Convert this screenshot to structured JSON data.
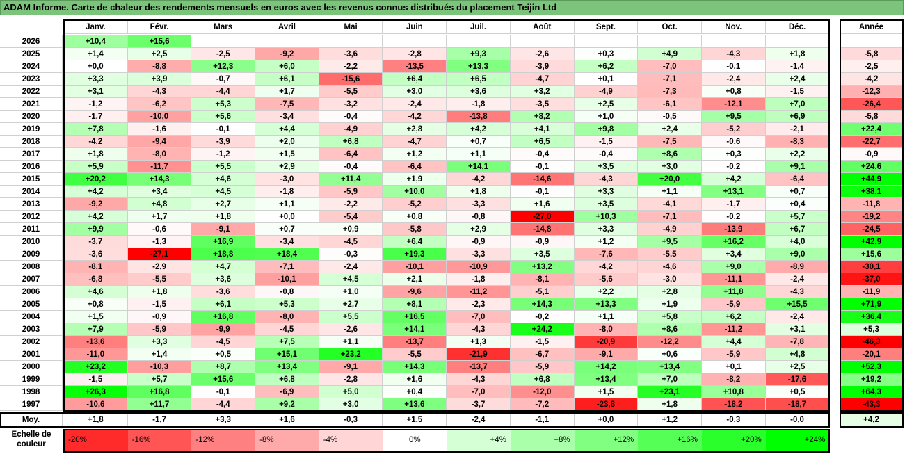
{
  "title": "ADAM Informe. Carte de chaleur des rendements mensuels en euros avec les revenus connus distribués du placement Teijin Ltd",
  "chart_data": {
    "type": "heatmap",
    "months": [
      "Janv.",
      "Févr.",
      "Mars",
      "Avril",
      "Mai",
      "Juin",
      "Juil.",
      "Août",
      "Sept.",
      "Oct.",
      "Nov.",
      "Déc."
    ],
    "year_header": "Année",
    "rows": [
      {
        "year": "2026",
        "months": [
          "+10,4",
          "+15,6",
          "",
          "",
          "",
          "",
          "",
          "",
          "",
          "",
          "",
          ""
        ],
        "annual": ""
      },
      {
        "year": "2025",
        "months": [
          "+1,4",
          "+2,5",
          "-2,5",
          "-9,2",
          "-3,6",
          "-2,8",
          "+9,3",
          "-2,6",
          "+0,3",
          "+4,9",
          "-4,3",
          "+1,8"
        ],
        "annual": "-5,8"
      },
      {
        "year": "2024",
        "months": [
          "+0,0",
          "-8,8",
          "+12,3",
          "+6,0",
          "-2,2",
          "-13,5",
          "+13,3",
          "-3,9",
          "+6,2",
          "-7,0",
          "-0,1",
          "-1,4"
        ],
        "annual": "-2,5"
      },
      {
        "year": "2023",
        "months": [
          "+3,3",
          "+3,9",
          "-0,7",
          "+6,1",
          "-15,6",
          "+6,4",
          "+6,5",
          "-4,7",
          "+0,1",
          "-7,1",
          "-2,4",
          "+2,4"
        ],
        "annual": "-4,2"
      },
      {
        "year": "2022",
        "months": [
          "+3,1",
          "-4,3",
          "-4,4",
          "+1,7",
          "-5,5",
          "+3,0",
          "+3,6",
          "+3,2",
          "-4,9",
          "-7,3",
          "+0,8",
          "-1,5"
        ],
        "annual": "-12,3"
      },
      {
        "year": "2021",
        "months": [
          "-1,2",
          "-6,2",
          "+5,3",
          "-7,5",
          "-3,2",
          "-2,4",
          "-1,8",
          "-3,5",
          "+2,5",
          "-6,1",
          "-12,1",
          "+7,0"
        ],
        "annual": "-26,4"
      },
      {
        "year": "2020",
        "months": [
          "-1,7",
          "-10,0",
          "+5,6",
          "-3,4",
          "-0,4",
          "-4,2",
          "-13,8",
          "+8,2",
          "+1,0",
          "-0,5",
          "+9,5",
          "+6,9"
        ],
        "annual": "-5,8"
      },
      {
        "year": "2019",
        "months": [
          "+7,8",
          "-1,6",
          "-0,1",
          "+4,4",
          "-4,9",
          "+2,8",
          "+4,2",
          "+4,1",
          "+9,8",
          "+2,4",
          "-5,2",
          "-2,1"
        ],
        "annual": "+22,4"
      },
      {
        "year": "2018",
        "months": [
          "-4,2",
          "-9,4",
          "-3,9",
          "+2,0",
          "+6,8",
          "-4,7",
          "+0,7",
          "+6,5",
          "-1,5",
          "-7,5",
          "-0,6",
          "-8,3"
        ],
        "annual": "-22,7"
      },
      {
        "year": "2017",
        "months": [
          "+1,8",
          "-8,0",
          "-1,2",
          "+1,5",
          "-6,4",
          "+1,2",
          "+1,1",
          "-0,4",
          "-0,4",
          "+8,6",
          "+0,3",
          "+2,2"
        ],
        "annual": "-0,9"
      },
      {
        "year": "2016",
        "months": [
          "+5,9",
          "-11,7",
          "+5,5",
          "+2,9",
          "-0,4",
          "-6,4",
          "+14,1",
          "-0,1",
          "+3,5",
          "+3,0",
          "-0,2",
          "+9,1"
        ],
        "annual": "+24,6"
      },
      {
        "year": "2015",
        "months": [
          "+20,2",
          "+14,3",
          "+4,6",
          "-3,0",
          "+11,4",
          "+1,9",
          "-4,2",
          "-14,6",
          "-4,3",
          "+20,0",
          "+4,2",
          "-6,4"
        ],
        "annual": "+44,9"
      },
      {
        "year": "2014",
        "months": [
          "+4,2",
          "+3,4",
          "+4,5",
          "-1,8",
          "-5,9",
          "+10,0",
          "+1,8",
          "-0,1",
          "+3,3",
          "+1,1",
          "+13,1",
          "+0,7"
        ],
        "annual": "+38,1"
      },
      {
        "year": "2013",
        "months": [
          "-9,2",
          "+4,8",
          "+2,7",
          "+1,1",
          "-2,2",
          "-5,2",
          "-3,3",
          "+1,6",
          "+3,5",
          "-4,1",
          "-1,7",
          "+0,4"
        ],
        "annual": "-11,8"
      },
      {
        "year": "2012",
        "months": [
          "+4,2",
          "+1,7",
          "+1,8",
          "+0,0",
          "-5,4",
          "+0,8",
          "-0,8",
          "-27,0",
          "+10,3",
          "-7,1",
          "-0,2",
          "+5,7"
        ],
        "annual": "-19,2"
      },
      {
        "year": "2011",
        "months": [
          "+9,9",
          "-0,6",
          "-9,1",
          "+0,7",
          "+0,9",
          "-5,8",
          "+2,9",
          "-14,8",
          "+3,3",
          "-4,9",
          "-13,9",
          "+6,7"
        ],
        "annual": "-24,5"
      },
      {
        "year": "2010",
        "months": [
          "-3,7",
          "-1,3",
          "+16,9",
          "-3,4",
          "-4,5",
          "+6,4",
          "-0,9",
          "-0,9",
          "+1,2",
          "+9,5",
          "+16,2",
          "+4,0"
        ],
        "annual": "+42,9"
      },
      {
        "year": "2009",
        "months": [
          "-3,6",
          "-27,1",
          "+18,8",
          "+18,4",
          "-0,3",
          "+19,3",
          "-3,3",
          "+3,5",
          "-7,6",
          "-5,5",
          "+3,4",
          "+9,0"
        ],
        "annual": "+15,6"
      },
      {
        "year": "2008",
        "months": [
          "-8,1",
          "-2,9",
          "+4,7",
          "-7,1",
          "-2,4",
          "-10,1",
          "-10,9",
          "+13,2",
          "-4,2",
          "-4,6",
          "+9,0",
          "-8,9"
        ],
        "annual": "-30,1"
      },
      {
        "year": "2007",
        "months": [
          "-6,8",
          "-5,5",
          "+3,6",
          "-10,1",
          "+4,5",
          "+2,1",
          "-1,8",
          "-8,1",
          "-5,6",
          "-3,0",
          "-11,1",
          "-2,4"
        ],
        "annual": "-37,0"
      },
      {
        "year": "2006",
        "months": [
          "+4,6",
          "+1,8",
          "-3,6",
          "-0,8",
          "+1,0",
          "-9,6",
          "-11,2",
          "-5,1",
          "+2,2",
          "+2,8",
          "+11,8",
          "-4,3"
        ],
        "annual": "-11,9"
      },
      {
        "year": "2005",
        "months": [
          "+0,8",
          "-1,5",
          "+6,1",
          "+5,3",
          "+2,7",
          "+8,1",
          "-2,3",
          "+14,3",
          "+13,3",
          "+1,9",
          "-5,9",
          "+15,5"
        ],
        "annual": "+71,9"
      },
      {
        "year": "2004",
        "months": [
          "+1,5",
          "-0,9",
          "+16,8",
          "-8,0",
          "+5,5",
          "+16,5",
          "-7,0",
          "-0,2",
          "+1,1",
          "+5,8",
          "+6,2",
          "-2,4"
        ],
        "annual": "+36,4"
      },
      {
        "year": "2003",
        "months": [
          "+7,9",
          "-5,9",
          "-9,9",
          "-4,5",
          "-2,6",
          "+14,1",
          "-4,3",
          "+24,2",
          "-8,0",
          "+8,6",
          "-11,2",
          "+3,1"
        ],
        "annual": "+5,3"
      },
      {
        "year": "2002",
        "months": [
          "-13,6",
          "+3,3",
          "-4,5",
          "+7,5",
          "+1,1",
          "-13,7",
          "+1,3",
          "-1,5",
          "-20,9",
          "-12,2",
          "+4,4",
          "-7,8"
        ],
        "annual": "-46,3"
      },
      {
        "year": "2001",
        "months": [
          "-11,0",
          "+1,4",
          "+0,5",
          "+15,1",
          "+23,2",
          "-5,5",
          "-21,9",
          "-6,7",
          "-9,1",
          "+0,6",
          "-5,9",
          "+4,8"
        ],
        "annual": "-20,1"
      },
      {
        "year": "2000",
        "months": [
          "+23,2",
          "-10,3",
          "+8,7",
          "+13,4",
          "-9,1",
          "+14,3",
          "-13,7",
          "-5,9",
          "+14,2",
          "+13,4",
          "+0,1",
          "+2,5"
        ],
        "annual": "+52,3"
      },
      {
        "year": "1999",
        "months": [
          "-1,5",
          "+5,7",
          "+15,6",
          "+6,8",
          "-2,8",
          "+1,6",
          "-4,3",
          "+6,8",
          "+13,4",
          "+7,0",
          "-8,2",
          "-17,6"
        ],
        "annual": "+19,2"
      },
      {
        "year": "1998",
        "months": [
          "+26,3",
          "+16,8",
          "-0,1",
          "-6,9",
          "+5,0",
          "+0,4",
          "-7,0",
          "-12,0",
          "+1,5",
          "+23,1",
          "+10,8",
          "+0,5"
        ],
        "annual": "+64,3"
      },
      {
        "year": "1997",
        "months": [
          "-10,6",
          "+11,7",
          "-4,4",
          "+9,2",
          "+3,0",
          "+13,6",
          "-3,7",
          "-7,2",
          "-23,8",
          "+1,8",
          "-18,2",
          "-18,7"
        ],
        "annual": "-43,3"
      }
    ],
    "average": {
      "label": "Moy.",
      "months": [
        "+1,8",
        "-1,7",
        "+3,3",
        "+1,6",
        "-0,3",
        "+1,5",
        "-2,4",
        "-1,1",
        "+0,0",
        "+1,2",
        "-0,3",
        "-0,0"
      ],
      "annual": "+4,2"
    },
    "scale": {
      "label": "Echelle de couleur",
      "steps": [
        {
          "label": "-20%",
          "value": -20
        },
        {
          "label": "-16%",
          "value": -16
        },
        {
          "label": "-12%",
          "value": -12
        },
        {
          "label": "-8%",
          "value": -8
        },
        {
          "label": "-4%",
          "value": -4
        },
        {
          "label": "0%",
          "value": 0
        },
        {
          "label": "+4%",
          "value": 4
        },
        {
          "label": "+8%",
          "value": 8
        },
        {
          "label": "+12%",
          "value": 12
        },
        {
          "label": "+16%",
          "value": 16
        },
        {
          "label": "+20%",
          "value": 20
        },
        {
          "label": "+24%",
          "value": 24
        }
      ]
    },
    "colors": {
      "negative_max": "#ff0000",
      "neutral": "#ffffff",
      "positive_max": "#00ff00",
      "title_bg": "#7cc47c"
    }
  }
}
